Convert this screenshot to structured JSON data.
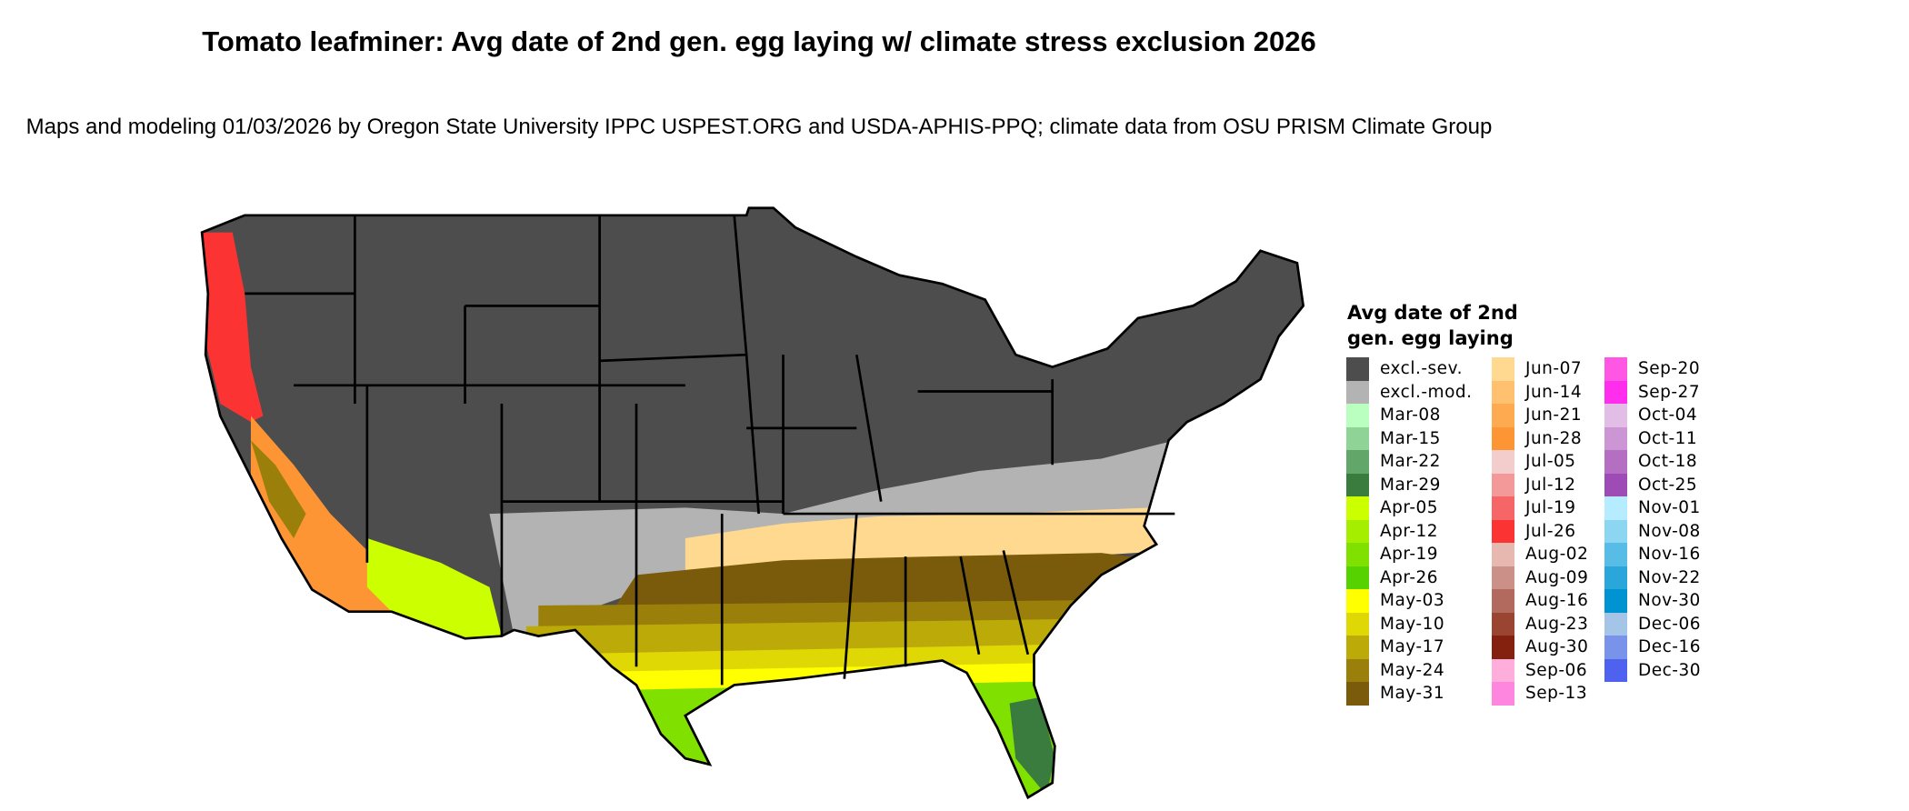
{
  "title": "Tomato leafminer: Avg date of 2nd gen. egg laying w/ climate stress exclusion 2026",
  "subtitle": "Maps and modeling 01/03/2026 by Oregon State University IPPC USPEST.ORG and USDA-APHIS-PPQ; climate data from OSU PRISM Climate Group",
  "legend": {
    "title": "Avg date of 2nd gen. egg laying",
    "columns": [
      [
        {
          "label": "excl.-sev.",
          "color": "#4d4d4d"
        },
        {
          "label": "excl.-mod.",
          "color": "#b3b3b3"
        },
        {
          "label": "Mar-08",
          "color": "#bbffc0"
        },
        {
          "label": "Mar-15",
          "color": "#8fd396"
        },
        {
          "label": "Mar-22",
          "color": "#63a66a"
        },
        {
          "label": "Mar-29",
          "color": "#3a7b3e"
        },
        {
          "label": "Apr-05",
          "color": "#ccff00"
        },
        {
          "label": "Apr-12",
          "color": "#a6ee00"
        },
        {
          "label": "Apr-19",
          "color": "#80e000"
        },
        {
          "label": "Apr-26",
          "color": "#55d200"
        },
        {
          "label": "May-03",
          "color": "#ffff00"
        },
        {
          "label": "May-10",
          "color": "#dfd805"
        },
        {
          "label": "May-17",
          "color": "#bcaa09"
        },
        {
          "label": "May-24",
          "color": "#9a800b"
        },
        {
          "label": "May-31",
          "color": "#7a5a0b"
        }
      ],
      [
        {
          "label": "Jun-07",
          "color": "#ffd98f"
        },
        {
          "label": "Jun-14",
          "color": "#ffc170"
        },
        {
          "label": "Jun-21",
          "color": "#fdaa50"
        },
        {
          "label": "Jun-28",
          "color": "#fd9535"
        },
        {
          "label": "Jul-05",
          "color": "#f3cccc"
        },
        {
          "label": "Jul-12",
          "color": "#f49999"
        },
        {
          "label": "Jul-19",
          "color": "#f66666"
        },
        {
          "label": "Jul-26",
          "color": "#fc3333"
        },
        {
          "label": "Aug-02",
          "color": "#e6b8b0"
        },
        {
          "label": "Aug-09",
          "color": "#cb9087"
        },
        {
          "label": "Aug-16",
          "color": "#b16a5d"
        },
        {
          "label": "Aug-23",
          "color": "#9a4532"
        },
        {
          "label": "Aug-30",
          "color": "#84200e"
        },
        {
          "label": "Sep-06",
          "color": "#ffaedb"
        },
        {
          "label": "Sep-13",
          "color": "#ff86de"
        }
      ],
      [
        {
          "label": "Sep-20",
          "color": "#ff57e4"
        },
        {
          "label": "Sep-27",
          "color": "#ff2eee"
        },
        {
          "label": "Oct-04",
          "color": "#e2bde6"
        },
        {
          "label": "Oct-11",
          "color": "#cb96d3"
        },
        {
          "label": "Oct-18",
          "color": "#b46fc2"
        },
        {
          "label": "Oct-25",
          "color": "#9f4bb5"
        },
        {
          "label": "Nov-01",
          "color": "#b5ecff"
        },
        {
          "label": "Nov-08",
          "color": "#8dd6f1"
        },
        {
          "label": "Nov-16",
          "color": "#57bde6"
        },
        {
          "label": "Nov-22",
          "color": "#2aa6da"
        },
        {
          "label": "Nov-30",
          "color": "#0093d2"
        },
        {
          "label": "Dec-06",
          "color": "#a4c4e8"
        },
        {
          "label": "Dec-16",
          "color": "#7a93ea"
        },
        {
          "label": "Dec-30",
          "color": "#4f62ef"
        }
      ]
    ]
  }
}
